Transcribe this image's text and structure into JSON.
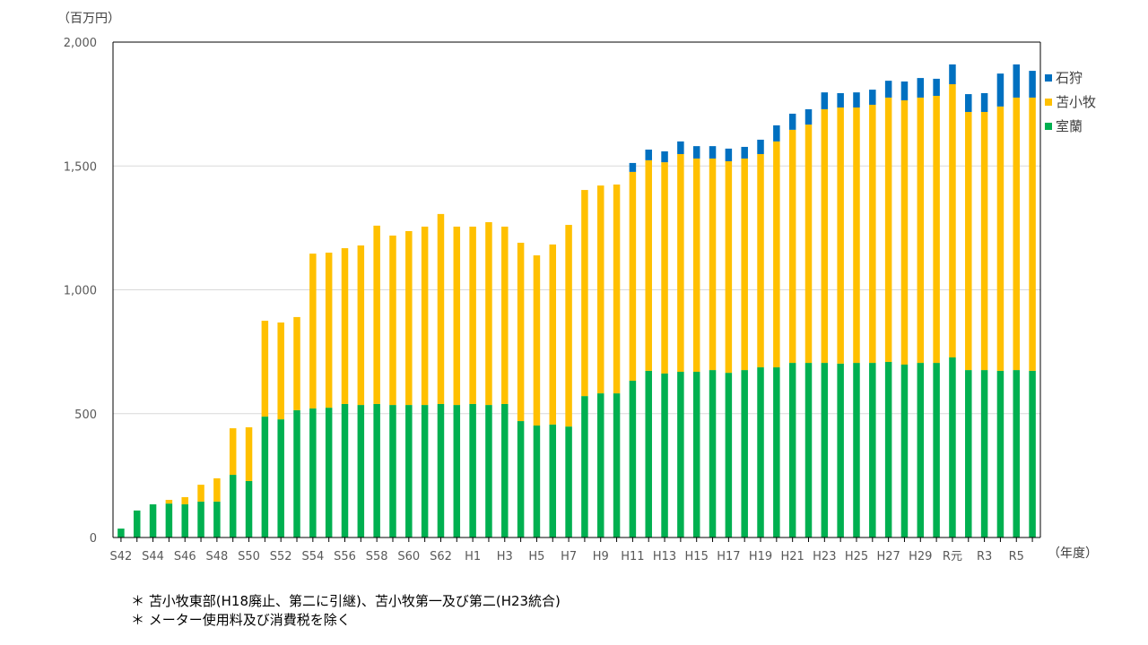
{
  "chart_data": {
    "type": "stacked-bar",
    "y_unit": "（百万円）",
    "x_unit": "（年度）",
    "ylim": [
      0,
      2000
    ],
    "yticks": [
      "0",
      "500",
      "1,000",
      "1,500",
      "2,000"
    ],
    "ytick_values": [
      0,
      500,
      1000,
      1500,
      2000
    ],
    "grid": true,
    "legend_position": "right",
    "categories": [
      "S42",
      "",
      "S44",
      "",
      "S46",
      "",
      "S48",
      "",
      "S50",
      "",
      "S52",
      "",
      "S54",
      "",
      "S56",
      "",
      "S58",
      "",
      "S60",
      "",
      "S62",
      "",
      "H1",
      "",
      "H3",
      "",
      "H5",
      "",
      "H7",
      "",
      "H9",
      "",
      "H11",
      "",
      "H13",
      "",
      "H15",
      "",
      "H17",
      "",
      "H19",
      "",
      "H21",
      "",
      "H23",
      "",
      "H25",
      "",
      "H27",
      "",
      "H29",
      "",
      "R元",
      "",
      "R3",
      "",
      "R5",
      ""
    ],
    "series": [
      {
        "name": "室蘭",
        "color": "#00B050",
        "values": [
          36,
          109,
          134,
          137,
          134,
          145,
          145,
          253,
          228,
          488,
          477,
          514,
          521,
          524,
          539,
          535,
          539,
          535,
          535,
          535,
          539,
          535,
          539,
          535,
          539,
          470,
          452,
          456,
          448,
          571,
          582,
          582,
          633,
          673,
          662,
          669,
          669,
          676,
          665,
          676,
          687,
          687,
          705,
          705,
          705,
          702,
          705,
          705,
          709,
          698,
          705,
          705,
          727,
          676,
          676,
          673,
          676,
          673
        ]
      },
      {
        "name": "苫小牧",
        "color": "#FFC000",
        "values": [
          0,
          0,
          0,
          15,
          29,
          68,
          94,
          188,
          217,
          387,
          391,
          376,
          625,
          626,
          629,
          644,
          720,
          684,
          702,
          720,
          767,
          720,
          716,
          738,
          716,
          720,
          687,
          727,
          814,
          832,
          839,
          843,
          843,
          850,
          853,
          879,
          861,
          854,
          854,
          854,
          861,
          912,
          941,
          962,
          1024,
          1034,
          1031,
          1042,
          1067,
          1067,
          1071,
          1078,
          1103,
          1042,
          1042,
          1067,
          1100,
          1103
        ]
      },
      {
        "name": "石狩",
        "color": "#0070C0",
        "values": [
          0,
          0,
          0,
          0,
          0,
          0,
          0,
          0,
          0,
          0,
          0,
          0,
          0,
          0,
          0,
          0,
          0,
          0,
          0,
          0,
          0,
          0,
          0,
          0,
          0,
          0,
          0,
          0,
          0,
          0,
          0,
          0,
          36,
          43,
          44,
          51,
          50,
          50,
          51,
          47,
          58,
          65,
          65,
          62,
          68,
          58,
          61,
          61,
          68,
          76,
          79,
          69,
          80,
          72,
          76,
          133,
          134,
          108
        ]
      }
    ],
    "legend": [
      "石狩",
      "苫小牧",
      "室蘭"
    ]
  },
  "notes": [
    "＊ 苫小牧東部(H18廃止、第二に引継)、苫小牧第一及び第二(H23統合)",
    "＊ メーター使用料及び消費税を除く"
  ]
}
